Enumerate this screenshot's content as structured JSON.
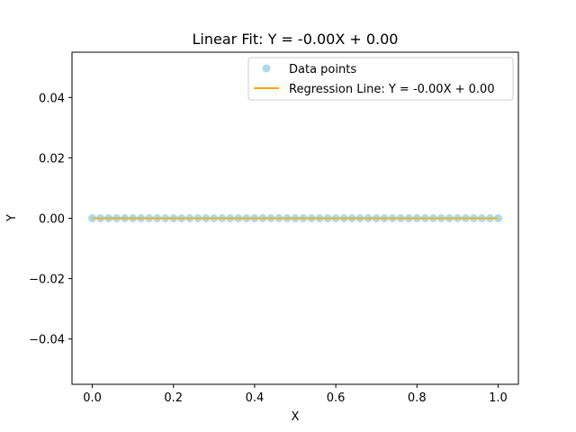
{
  "chart_data": {
    "type": "scatter",
    "title": "Linear Fit: Y = -0.00X + 0.00",
    "xlabel": "X",
    "ylabel": "Y",
    "xlim": [
      -0.05,
      1.05
    ],
    "ylim": [
      -0.055,
      0.055
    ],
    "x_ticks": [
      0.0,
      0.2,
      0.4,
      0.6,
      0.8,
      1.0
    ],
    "x_tick_labels": [
      "0.0",
      "0.2",
      "0.4",
      "0.6",
      "0.8",
      "1.0"
    ],
    "y_ticks": [
      -0.04,
      -0.02,
      0.0,
      0.02,
      0.04
    ],
    "y_tick_labels": [
      "−0.04",
      "−0.02",
      "0.00",
      "0.02",
      "0.04"
    ],
    "grid": false,
    "legend_position": "top-right",
    "series": [
      {
        "name": "Data points",
        "kind": "scatter",
        "color": "#add8e6",
        "x": [
          0.0,
          0.02,
          0.04,
          0.06,
          0.08,
          0.1,
          0.12,
          0.14,
          0.16,
          0.18,
          0.2,
          0.22,
          0.24,
          0.26,
          0.28,
          0.3,
          0.32,
          0.34,
          0.36,
          0.38,
          0.4,
          0.42,
          0.44,
          0.46,
          0.48,
          0.5,
          0.52,
          0.54,
          0.56,
          0.58,
          0.6,
          0.62,
          0.64,
          0.66,
          0.68,
          0.7,
          0.72,
          0.74,
          0.76,
          0.78,
          0.8,
          0.82,
          0.84,
          0.86,
          0.88,
          0.9,
          0.92,
          0.94,
          0.96,
          0.98,
          1.0
        ],
        "y": [
          0,
          0,
          0,
          0,
          0,
          0,
          0,
          0,
          0,
          0,
          0,
          0,
          0,
          0,
          0,
          0,
          0,
          0,
          0,
          0,
          0,
          0,
          0,
          0,
          0,
          0,
          0,
          0,
          0,
          0,
          0,
          0,
          0,
          0,
          0,
          0,
          0,
          0,
          0,
          0,
          0,
          0,
          0,
          0,
          0,
          0,
          0,
          0,
          0,
          0,
          0
        ]
      },
      {
        "name": "Regression Line: Y = -0.00X + 0.00",
        "kind": "line",
        "color": "#ffa500",
        "x": [
          0.0,
          1.0
        ],
        "y": [
          0.0,
          0.0
        ]
      }
    ]
  }
}
